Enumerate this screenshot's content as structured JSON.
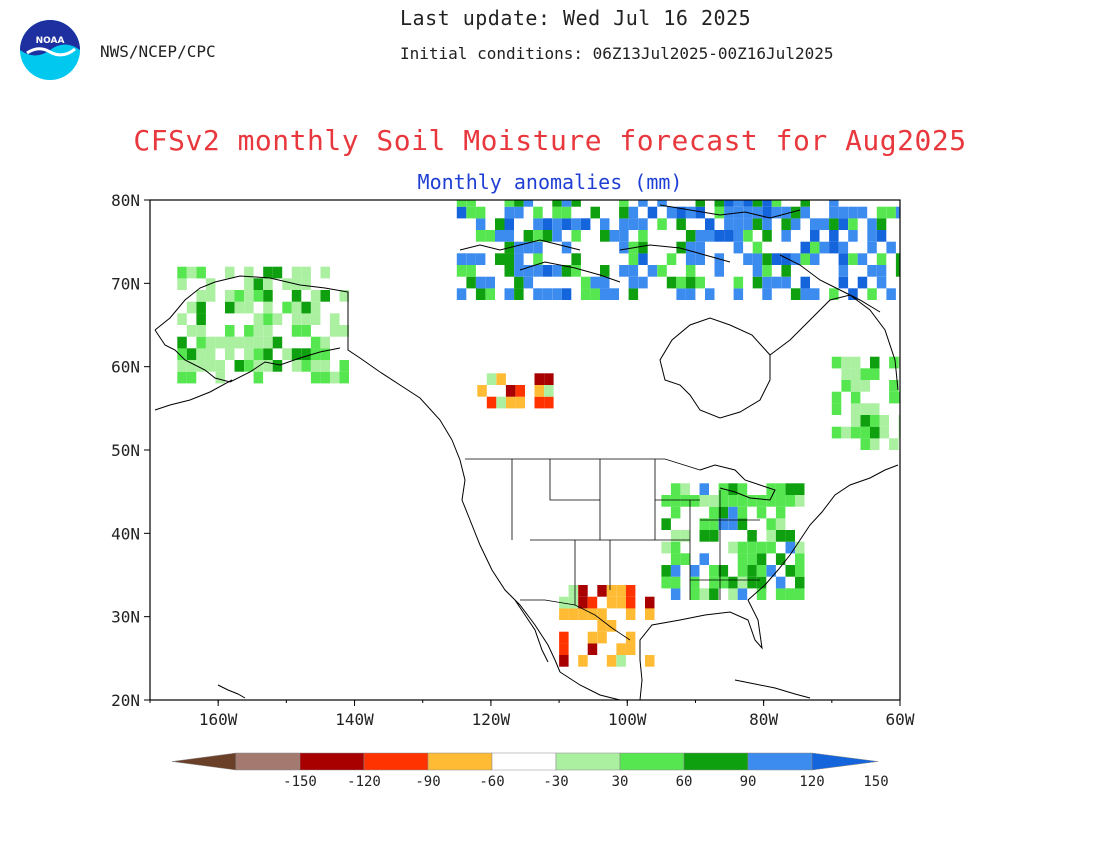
{
  "header": {
    "last_update": "Last update: Wed Jul 16 2025",
    "initial_conditions": "Initial conditions: 06Z13Jul2025-00Z16Jul2025",
    "org": "NWS/NCEP/CPC",
    "logo_text": "NOAA"
  },
  "title": "CFSv2 monthly Soil Moisture forecast for Aug2025",
  "subtitle": "Monthly anomalies (mm)",
  "map": {
    "lon_range": [
      -170,
      -60
    ],
    "lat_range": [
      20,
      80
    ],
    "lat_ticks": [
      "80N",
      "70N",
      "60N",
      "50N",
      "40N",
      "30N",
      "20N"
    ],
    "lon_ticks": [
      "160W",
      "140W",
      "120W",
      "100W",
      "80W",
      "60W"
    ]
  },
  "colorbar": {
    "labels": [
      "-150",
      "-120",
      "-90",
      "-60",
      "-30",
      "30",
      "60",
      "90",
      "120",
      "150"
    ],
    "colors": [
      "#6b4028",
      "#a47a70",
      "#a80000",
      "#ff3300",
      "#ffbb33",
      "#ffffff",
      "#aaf0a0",
      "#55e650",
      "#0fa00f",
      "#3c8cf0",
      "#1464dc"
    ]
  },
  "anomaly_regions": [
    {
      "name": "Alaska",
      "lon": [
        -166,
        -142
      ],
      "lat": [
        58,
        71
      ],
      "dominant": "wet-light"
    },
    {
      "name": "Canadian Arctic Archipelago",
      "lon": [
        -125,
        -60
      ],
      "lat": [
        68,
        80
      ],
      "dominant": "wet-strong"
    },
    {
      "name": "Northern Alberta / British Columbia",
      "lon": [
        -122,
        -112
      ],
      "lat": [
        55,
        59
      ],
      "dominant": "dry-strong"
    },
    {
      "name": "Mexico / Southwest US",
      "lon": [
        -110,
        -97
      ],
      "lat": [
        24,
        33
      ],
      "dominant": "dry-strong"
    },
    {
      "name": "Eastern United States",
      "lon": [
        -95,
        -75
      ],
      "lat": [
        32,
        45
      ],
      "dominant": "wet-moderate"
    },
    {
      "name": "Labrador / Quebec",
      "lon": [
        -70,
        -60
      ],
      "lat": [
        50,
        60
      ],
      "dominant": "wet-light"
    }
  ]
}
